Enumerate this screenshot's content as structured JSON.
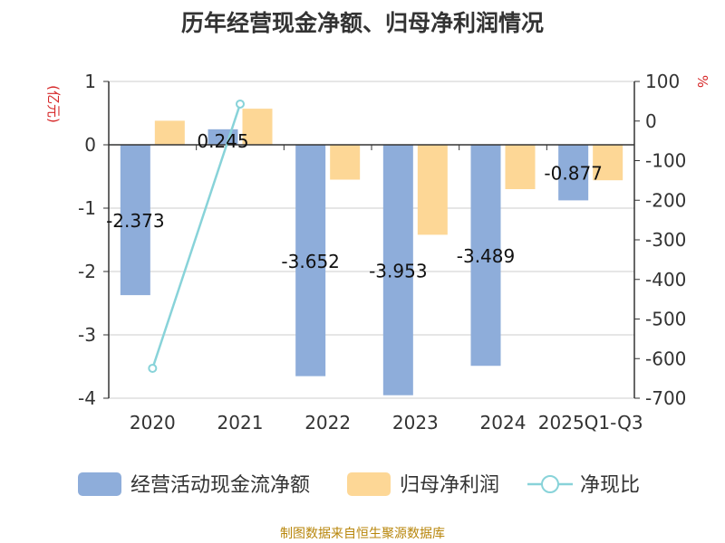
{
  "chart_data": {
    "type": "bar",
    "title": "历年经营现金净额、归母净利润情况",
    "categories": [
      "2020",
      "2021",
      "2022",
      "2023",
      "2024",
      "2025Q1-Q3"
    ],
    "series": [
      {
        "name": "经营活动现金流净额",
        "kind": "bar",
        "axis": "left",
        "color": "#8eadda",
        "values": [
          -2.373,
          0.245,
          -3.652,
          -3.953,
          -3.489,
          -0.877
        ],
        "labels": [
          "-2.373",
          "0.245",
          "-3.652",
          "-3.953",
          "-3.489",
          "-0.877"
        ]
      },
      {
        "name": "归母净利润",
        "kind": "bar",
        "axis": "left",
        "color": "#fdd796",
        "values": [
          0.38,
          0.57,
          -0.55,
          -1.42,
          -0.7,
          -0.56
        ]
      },
      {
        "name": "净现比",
        "kind": "line",
        "axis": "right",
        "color": "#88d3d9",
        "values": [
          -624.5,
          43.0,
          null,
          null,
          null,
          null
        ]
      }
    ],
    "left_axis": {
      "label": "(亿元)",
      "min": -4,
      "max": 1,
      "ticks": [
        1,
        0,
        -1,
        -2,
        -3,
        -4
      ]
    },
    "right_axis": {
      "label": "%",
      "min": -700,
      "max": 100,
      "ticks": [
        100,
        0,
        -100,
        -200,
        -300,
        -400,
        -500,
        -600,
        -700
      ]
    },
    "legend_position": "bottom",
    "grid": true
  },
  "source": "制图数据来自恒生聚源数据库",
  "colors": {
    "axis_label_red": "#d62728",
    "grid": "#cccccc",
    "axis": "#333333"
  }
}
